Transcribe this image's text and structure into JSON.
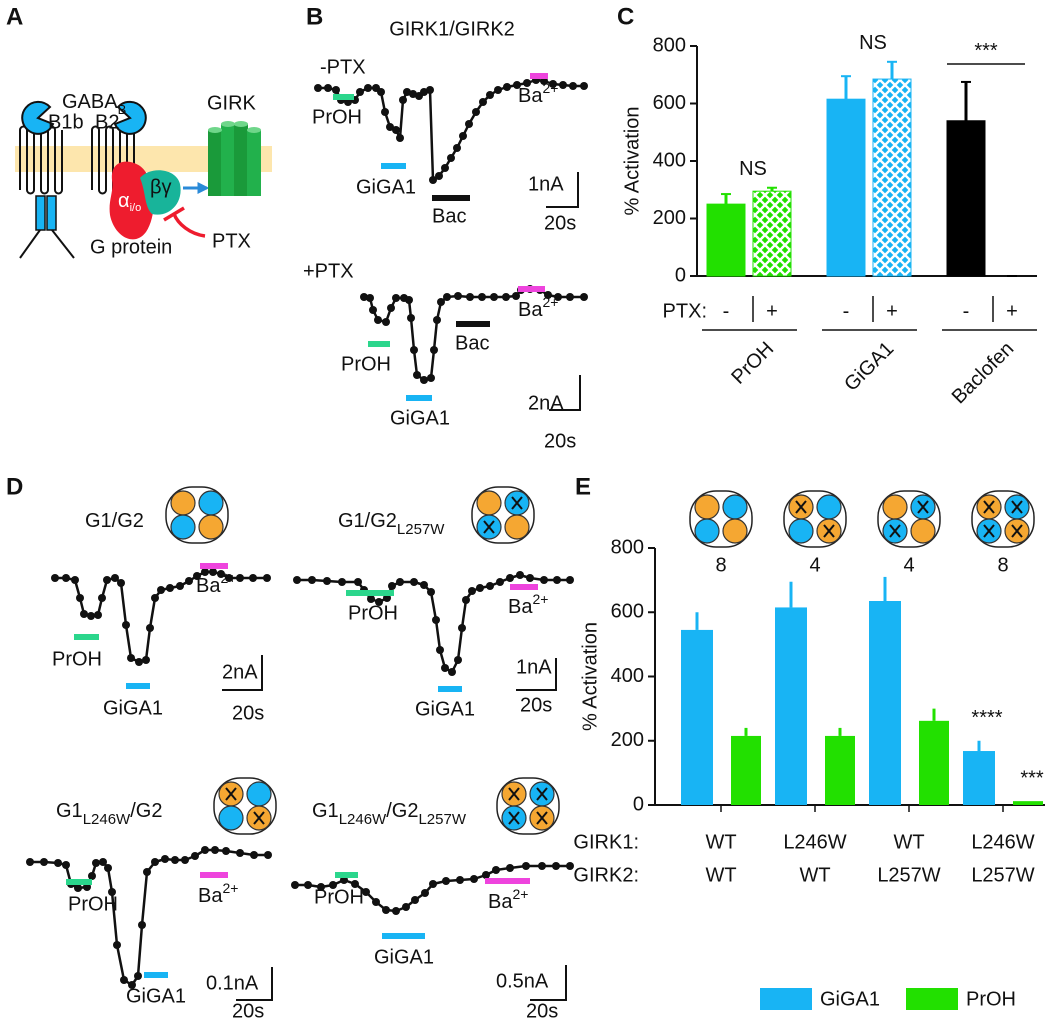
{
  "panel_a": {
    "label": "A",
    "receptor": "GABA",
    "receptor_sub": "B",
    "subunits": [
      "B1b",
      "B2"
    ],
    "channel": "GIRK",
    "alpha": "α",
    "alpha_sub": "i/o",
    "beta_gamma": "βγ",
    "g_protein": "G protein",
    "toxin": "PTX"
  },
  "panel_b": {
    "label": "B",
    "title": "GIRK1/GIRK2",
    "conditions": [
      "-PTX",
      "+PTX"
    ],
    "drugs": [
      "PrOH",
      "GiGA1",
      "Bac"
    ],
    "barium": {
      "base": "Ba",
      "sup": "2+"
    },
    "scale_bars": [
      {
        "current": "1nA",
        "time": "20s"
      },
      {
        "current": "2nA",
        "time": "20s"
      }
    ]
  },
  "panel_d": {
    "label": "D",
    "drugs": [
      "PrOH",
      "GiGA1"
    ],
    "barium": {
      "base": "Ba",
      "sup": "2+"
    },
    "recordings": [
      {
        "title": [
          {
            "text": "G1/G2"
          }
        ],
        "scale_bar": {
          "current": "2nA",
          "time": "20s"
        }
      },
      {
        "title": [
          {
            "text": "G1/G2"
          },
          {
            "sub": "L257W"
          }
        ],
        "scale_bar": {
          "current": "1nA",
          "time": "20s"
        }
      },
      {
        "title": [
          {
            "text": "G1"
          },
          {
            "sub": "L246W"
          },
          {
            "text": "/G2"
          }
        ],
        "scale_bar": {
          "current": "0.1nA",
          "time": "20s"
        }
      },
      {
        "title": [
          {
            "text": "G1"
          },
          {
            "sub": "L246W"
          },
          {
            "text": "/G2"
          },
          {
            "sub": "L257W"
          }
        ],
        "scale_bar": {
          "current": "0.5nA",
          "time": "20s"
        }
      }
    ]
  },
  "chart_data": [
    {
      "type": "bar",
      "panel_label": "C",
      "ylabel": "% Activation",
      "ylim": [
        0,
        800
      ],
      "yticks": [
        0,
        200,
        400,
        600,
        800
      ],
      "categories": [
        "PrOH",
        "GiGA1",
        "Baclofen"
      ],
      "colors": [
        "#22e000",
        "#18b4f4",
        "#000000"
      ],
      "condition_label": "PTX:",
      "series": [
        {
          "name": "-",
          "values": [
            250,
            615,
            540
          ],
          "errors": [
            35,
            80,
            135
          ]
        },
        {
          "name": "+",
          "values": [
            295,
            685,
            0
          ],
          "errors": [
            12,
            60,
            0
          ],
          "hatch": true
        }
      ],
      "annotations": [
        "NS",
        "NS",
        "***"
      ]
    },
    {
      "type": "bar",
      "panel_label": "E",
      "ylabel": "% Activation",
      "ylim": [
        0,
        800
      ],
      "yticks": [
        0,
        200,
        400,
        600,
        800
      ],
      "row_labels": [
        "GIRK1:",
        "GIRK2:"
      ],
      "girk1": [
        "WT",
        "L246W",
        "WT",
        "L246W"
      ],
      "girk2": [
        "WT",
        "WT",
        "L257W",
        "L257W"
      ],
      "n": [
        8,
        4,
        4,
        8
      ],
      "series": [
        {
          "name": "GiGA1",
          "color": "#18b4f4",
          "values": [
            545,
            615,
            635,
            168
          ],
          "errors": [
            55,
            80,
            75,
            32
          ]
        },
        {
          "name": "PrOH",
          "color": "#22e000",
          "values": [
            215,
            215,
            262,
            12
          ],
          "errors": [
            25,
            25,
            38,
            0
          ]
        }
      ],
      "annotations": [
        "****",
        "***"
      ]
    }
  ]
}
